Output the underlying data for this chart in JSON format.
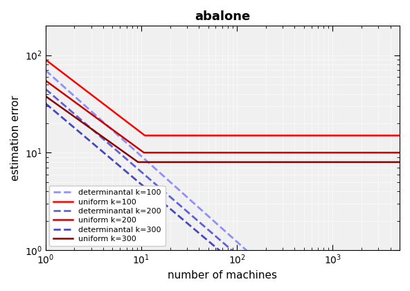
{
  "title": "abalone",
  "xlabel": "number of machines",
  "ylabel": "estimation error",
  "xlim": [
    1,
    5000
  ],
  "ylim": [
    1.0,
    200
  ],
  "series": [
    {
      "label": "determinantal k=100",
      "color": "#6666ff",
      "style": "dashed",
      "lw": 2.0,
      "alpha": 0.7,
      "k": 100,
      "type": "determinantal"
    },
    {
      "label": "uniform k=100",
      "color": "#ff0000",
      "style": "solid",
      "lw": 1.8,
      "alpha": 1.0,
      "k": 100,
      "type": "uniform"
    },
    {
      "label": "determinantal k=200",
      "color": "#2222cc",
      "style": "dashed",
      "lw": 2.0,
      "alpha": 0.7,
      "k": 200,
      "type": "determinantal"
    },
    {
      "label": "uniform k=200",
      "color": "#cc0000",
      "style": "solid",
      "lw": 1.8,
      "alpha": 1.0,
      "k": 200,
      "type": "uniform"
    },
    {
      "label": "determinantal k=300",
      "color": "#0000aa",
      "style": "dashed",
      "lw": 2.0,
      "alpha": 0.7,
      "k": 300,
      "type": "determinantal"
    },
    {
      "label": "uniform k=300",
      "color": "#8b0000",
      "style": "solid",
      "lw": 1.8,
      "alpha": 1.0,
      "k": 300,
      "type": "uniform"
    }
  ]
}
